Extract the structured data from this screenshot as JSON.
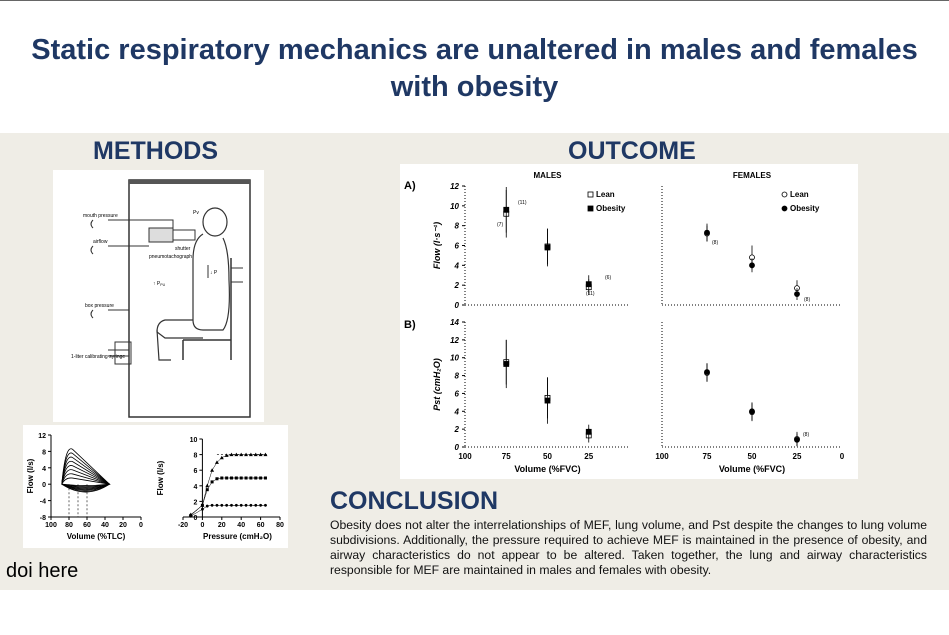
{
  "title": "Static respiratory mechanics are unaltered in males and females with obesity",
  "sections": {
    "methods": "METHODS",
    "outcome": "OUTCOME",
    "conclusion": "CONCLUSION"
  },
  "doi": "doi here",
  "conclusion_text": "Obesity does not alter the interrelationships of MEF, lung volume, and Pst despite the changes to lung volume subdivisions. Additionally, the pressure required to achieve MEF is maintained in the presence of obesity, and airway characteristics do not appear to be altered. Taken together, the lung and airway characteristics responsible for MEF are maintained in males and females with obesity.",
  "diagram_labels": {
    "mouth_pressure": "mouth pressure",
    "airflow": "airflow",
    "shutter": "shutter",
    "pneumotach": "pneumotachograph",
    "pv": "Pv",
    "box_pressure": "box pressure",
    "syringe": "1-liter calibrating syringe",
    "p": "↓ P",
    "ppu": "↑ P",
    "ppu_sub": "PU"
  },
  "chart_data": [
    {
      "type": "line",
      "title": "",
      "xlabel": "Volume (%TLC)",
      "ylabel": "Flow (l/s)",
      "xlim": [
        100,
        0
      ],
      "ylim": [
        -8,
        12
      ],
      "xticks": [
        100,
        80,
        60,
        40,
        20,
        0
      ],
      "yticks": [
        12,
        8,
        4,
        0,
        -4,
        -8
      ],
      "loops_peak_flow": [
        1.5,
        2.5,
        3.5,
        4.5,
        5.5,
        6.5,
        7.5,
        8.5
      ]
    },
    {
      "type": "scatter",
      "title": "",
      "xlabel": "Pressure (cmH₂O)",
      "ylabel": "Flow (l/s)",
      "xlim": [
        -20,
        80
      ],
      "ylim": [
        0,
        10
      ],
      "xticks": [
        -20,
        0,
        20,
        40,
        60,
        80
      ],
      "yticks": [
        10,
        8,
        6,
        4,
        2,
        0
      ],
      "series": [
        {
          "plateau": 8,
          "values": [
            [
              -12,
              0.3
            ],
            [
              0,
              1.5
            ],
            [
              5,
              4
            ],
            [
              10,
              6
            ],
            [
              15,
              7
            ],
            [
              20,
              7.6
            ],
            [
              25,
              7.9
            ],
            [
              30,
              8
            ],
            [
              35,
              8
            ],
            [
              40,
              8
            ],
            [
              45,
              8
            ],
            [
              50,
              8
            ],
            [
              55,
              8
            ],
            [
              60,
              8
            ],
            [
              65,
              8
            ]
          ]
        },
        {
          "plateau": 5,
          "values": [
            [
              -12,
              0.2
            ],
            [
              0,
              1.5
            ],
            [
              5,
              3.5
            ],
            [
              10,
              4.5
            ],
            [
              15,
              4.9
            ],
            [
              20,
              5
            ],
            [
              25,
              5
            ],
            [
              30,
              5
            ],
            [
              35,
              5
            ],
            [
              40,
              5
            ],
            [
              45,
              5
            ],
            [
              50,
              5
            ],
            [
              55,
              5
            ],
            [
              60,
              5
            ],
            [
              65,
              5
            ]
          ]
        },
        {
          "plateau": 1.5,
          "values": [
            [
              -12,
              0.1
            ],
            [
              0,
              1
            ],
            [
              5,
              1.4
            ],
            [
              10,
              1.5
            ],
            [
              15,
              1.5
            ],
            [
              20,
              1.5
            ],
            [
              25,
              1.5
            ],
            [
              30,
              1.5
            ],
            [
              35,
              1.5
            ],
            [
              40,
              1.5
            ],
            [
              45,
              1.5
            ],
            [
              50,
              1.5
            ],
            [
              55,
              1.5
            ],
            [
              60,
              1.5
            ],
            [
              65,
              1.5
            ]
          ]
        }
      ]
    },
    {
      "type": "scatter",
      "panel": "A)",
      "title": "MALES",
      "ylabel": "Flow (l·s⁻¹)",
      "xlim": [
        100,
        0
      ],
      "ylim": [
        0,
        12
      ],
      "yticks": [
        0,
        2,
        4,
        6,
        8,
        10,
        12
      ],
      "series": [
        {
          "name": "Lean",
          "marker": "open-square",
          "x": [
            75,
            50,
            25
          ],
          "y": [
            9.2,
            5.9,
            1.8
          ],
          "err": [
            2.4,
            1.8,
            0.8
          ]
        },
        {
          "name": "Obesity",
          "marker": "filled-square",
          "x": [
            75,
            50,
            25
          ],
          "y": [
            9.6,
            5.8,
            2.1
          ],
          "err": [
            2.3,
            1.9,
            0.9
          ]
        }
      ],
      "annotations": [
        "(7)",
        "(11)",
        "(6)",
        "(11)"
      ]
    },
    {
      "type": "scatter",
      "panel": "",
      "title": "FEMALES",
      "xlim": [
        100,
        0
      ],
      "ylim": [
        0,
        12
      ],
      "series": [
        {
          "name": "Lean",
          "marker": "open-circle",
          "x": [
            75,
            50,
            25
          ],
          "y": [
            7.2,
            4.8,
            1.7
          ],
          "err": [
            0.8,
            1.2,
            0.8
          ]
        },
        {
          "name": "Obesity",
          "marker": "filled-circle",
          "x": [
            75,
            50,
            25
          ],
          "y": [
            7.3,
            4.0,
            1.1
          ],
          "err": [
            0.9,
            0.7,
            0.6
          ]
        }
      ],
      "annotations": [
        "(8)",
        "(8)"
      ]
    },
    {
      "type": "scatter",
      "panel": "B)",
      "title": "",
      "xlabel": "Volume (%FVC)",
      "ylabel": "Pst (cmH₂O)",
      "xlim": [
        100,
        0
      ],
      "ylim": [
        0,
        14
      ],
      "xticks": [
        100,
        75,
        50,
        25
      ],
      "yticks": [
        0,
        2,
        4,
        6,
        8,
        10,
        12,
        14
      ],
      "series": [
        {
          "name": "Lean",
          "marker": "open-square",
          "x": [
            75,
            50,
            25
          ],
          "y": [
            9.5,
            5.5,
            1.3
          ],
          "err": [
            2.5,
            2.3,
            0.8
          ]
        },
        {
          "name": "Obesity",
          "marker": "filled-square",
          "x": [
            75,
            50,
            25
          ],
          "y": [
            9.3,
            5.2,
            1.7
          ],
          "err": [
            2.7,
            2.6,
            0.8
          ]
        }
      ]
    },
    {
      "type": "scatter",
      "panel": "",
      "title": "",
      "xlabel": "Volume (%FVC)",
      "xlim": [
        100,
        0
      ],
      "ylim": [
        0,
        14
      ],
      "xticks": [
        100,
        75,
        50,
        25,
        0
      ],
      "series": [
        {
          "name": "Lean",
          "marker": "open-circle",
          "x": [
            75,
            50,
            25
          ],
          "y": [
            8.3,
            3.9,
            0.9
          ],
          "err": [
            1.0,
            1.0,
            0.8
          ]
        },
        {
          "name": "Obesity",
          "marker": "filled-circle",
          "x": [
            75,
            50,
            25
          ],
          "y": [
            8.4,
            4.0,
            0.8
          ],
          "err": [
            1.0,
            1.0,
            0.7
          ]
        }
      ],
      "annotations": [
        "(8)"
      ]
    }
  ]
}
